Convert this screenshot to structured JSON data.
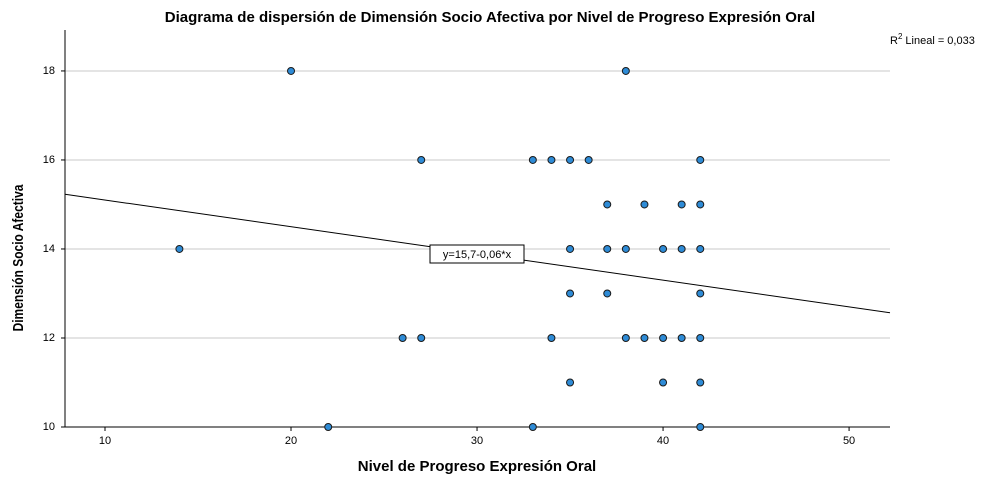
{
  "chart_data": {
    "type": "scatter",
    "title": "Diagrama de dispersión de Dimensión Socio Afectiva por Nivel de Progreso Expresión Oral",
    "x_label": "Nivel de Progreso Expresión Oral",
    "y_label": "Dimensión Socio Afectiva",
    "color": "#2e8bd6",
    "x": [
      20,
      38,
      27,
      33,
      34,
      35,
      36,
      42,
      37,
      39,
      41,
      42,
      14,
      35,
      37,
      38,
      40,
      41,
      42,
      35,
      37,
      42,
      26,
      27,
      34,
      38,
      39,
      40,
      41,
      42,
      35,
      40,
      42,
      22,
      33,
      42
    ],
    "values": [
      18,
      18,
      16,
      16,
      16,
      16,
      16,
      16,
      15,
      15,
      15,
      15,
      14,
      14,
      14,
      14,
      14,
      14,
      14,
      13,
      13,
      13,
      12,
      12,
      12,
      12,
      12,
      12,
      12,
      12,
      11,
      11,
      11,
      10,
      10,
      10
    ],
    "xlim": [
      7.85,
      52.2
    ],
    "ylim": [
      10,
      18.92
    ],
    "xticks": [
      10,
      20,
      30,
      40,
      50
    ],
    "yticks": [
      10,
      12,
      14,
      16,
      18
    ],
    "grid": true,
    "fit": {
      "intercept": 15.7,
      "slope": -0.06,
      "label": "y=15,7-0,06*x"
    },
    "r2_label": {
      "base": "R",
      "sup": "2",
      "text": "Lineal = 0,033"
    }
  }
}
